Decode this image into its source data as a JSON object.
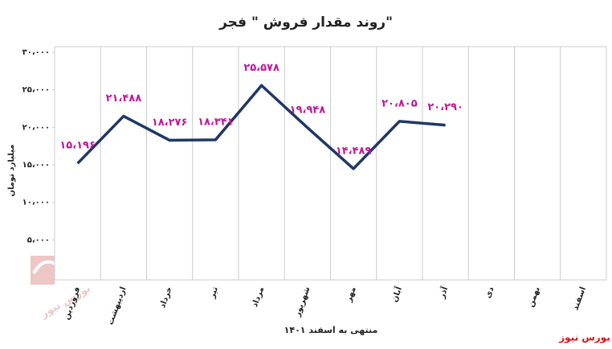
{
  "chart_data": {
    "type": "line",
    "title": "روند مقدار فروش \" فجر\"",
    "y_label": "میلیارد تومان",
    "x_label": "منتهی به اسفند ۱۴۰۱",
    "source": "بورس نیوز",
    "watermark": "بورس نیوز",
    "categories": [
      "فروردین",
      "اردیبهشت",
      "خرداد",
      "تیر",
      "مرداد",
      "شهریور",
      "مهر",
      "آبان",
      "آذر",
      "دی",
      "بهمن",
      "اسفند"
    ],
    "series": [
      {
        "name": "فجر",
        "color": "#1f3864",
        "values": [
          15196,
          21488,
          18276,
          18341,
          25578,
          19948,
          14489,
          20805,
          20290,
          null,
          null,
          null
        ],
        "value_labels": [
          "۱۵،۱۹۶",
          "۲۱،۴۸۸",
          "۱۸،۲۷۶",
          "۱۸،۳۴۱",
          "۲۵،۵۷۸",
          "۱۹،۹۴۸",
          "۱۴،۴۸۹",
          "۲۰،۸۰۵",
          "۲۰،۲۹۰",
          null,
          null,
          null
        ]
      }
    ],
    "label_color": "#c0189a",
    "ylim": [
      0,
      30000
    ],
    "yticks": [
      {
        "value": 5000,
        "label": "۵،۰۰۰"
      },
      {
        "value": 10000,
        "label": "۱۰،۰۰۰"
      },
      {
        "value": 15000,
        "label": "۱۵،۰۰۰"
      },
      {
        "value": 20000,
        "label": "۲۰،۰۰۰"
      },
      {
        "value": 25000,
        "label": "۲۵،۰۰۰"
      },
      {
        "value": 30000,
        "label": "۳۰،۰۰۰"
      }
    ],
    "category_dividers": true
  }
}
